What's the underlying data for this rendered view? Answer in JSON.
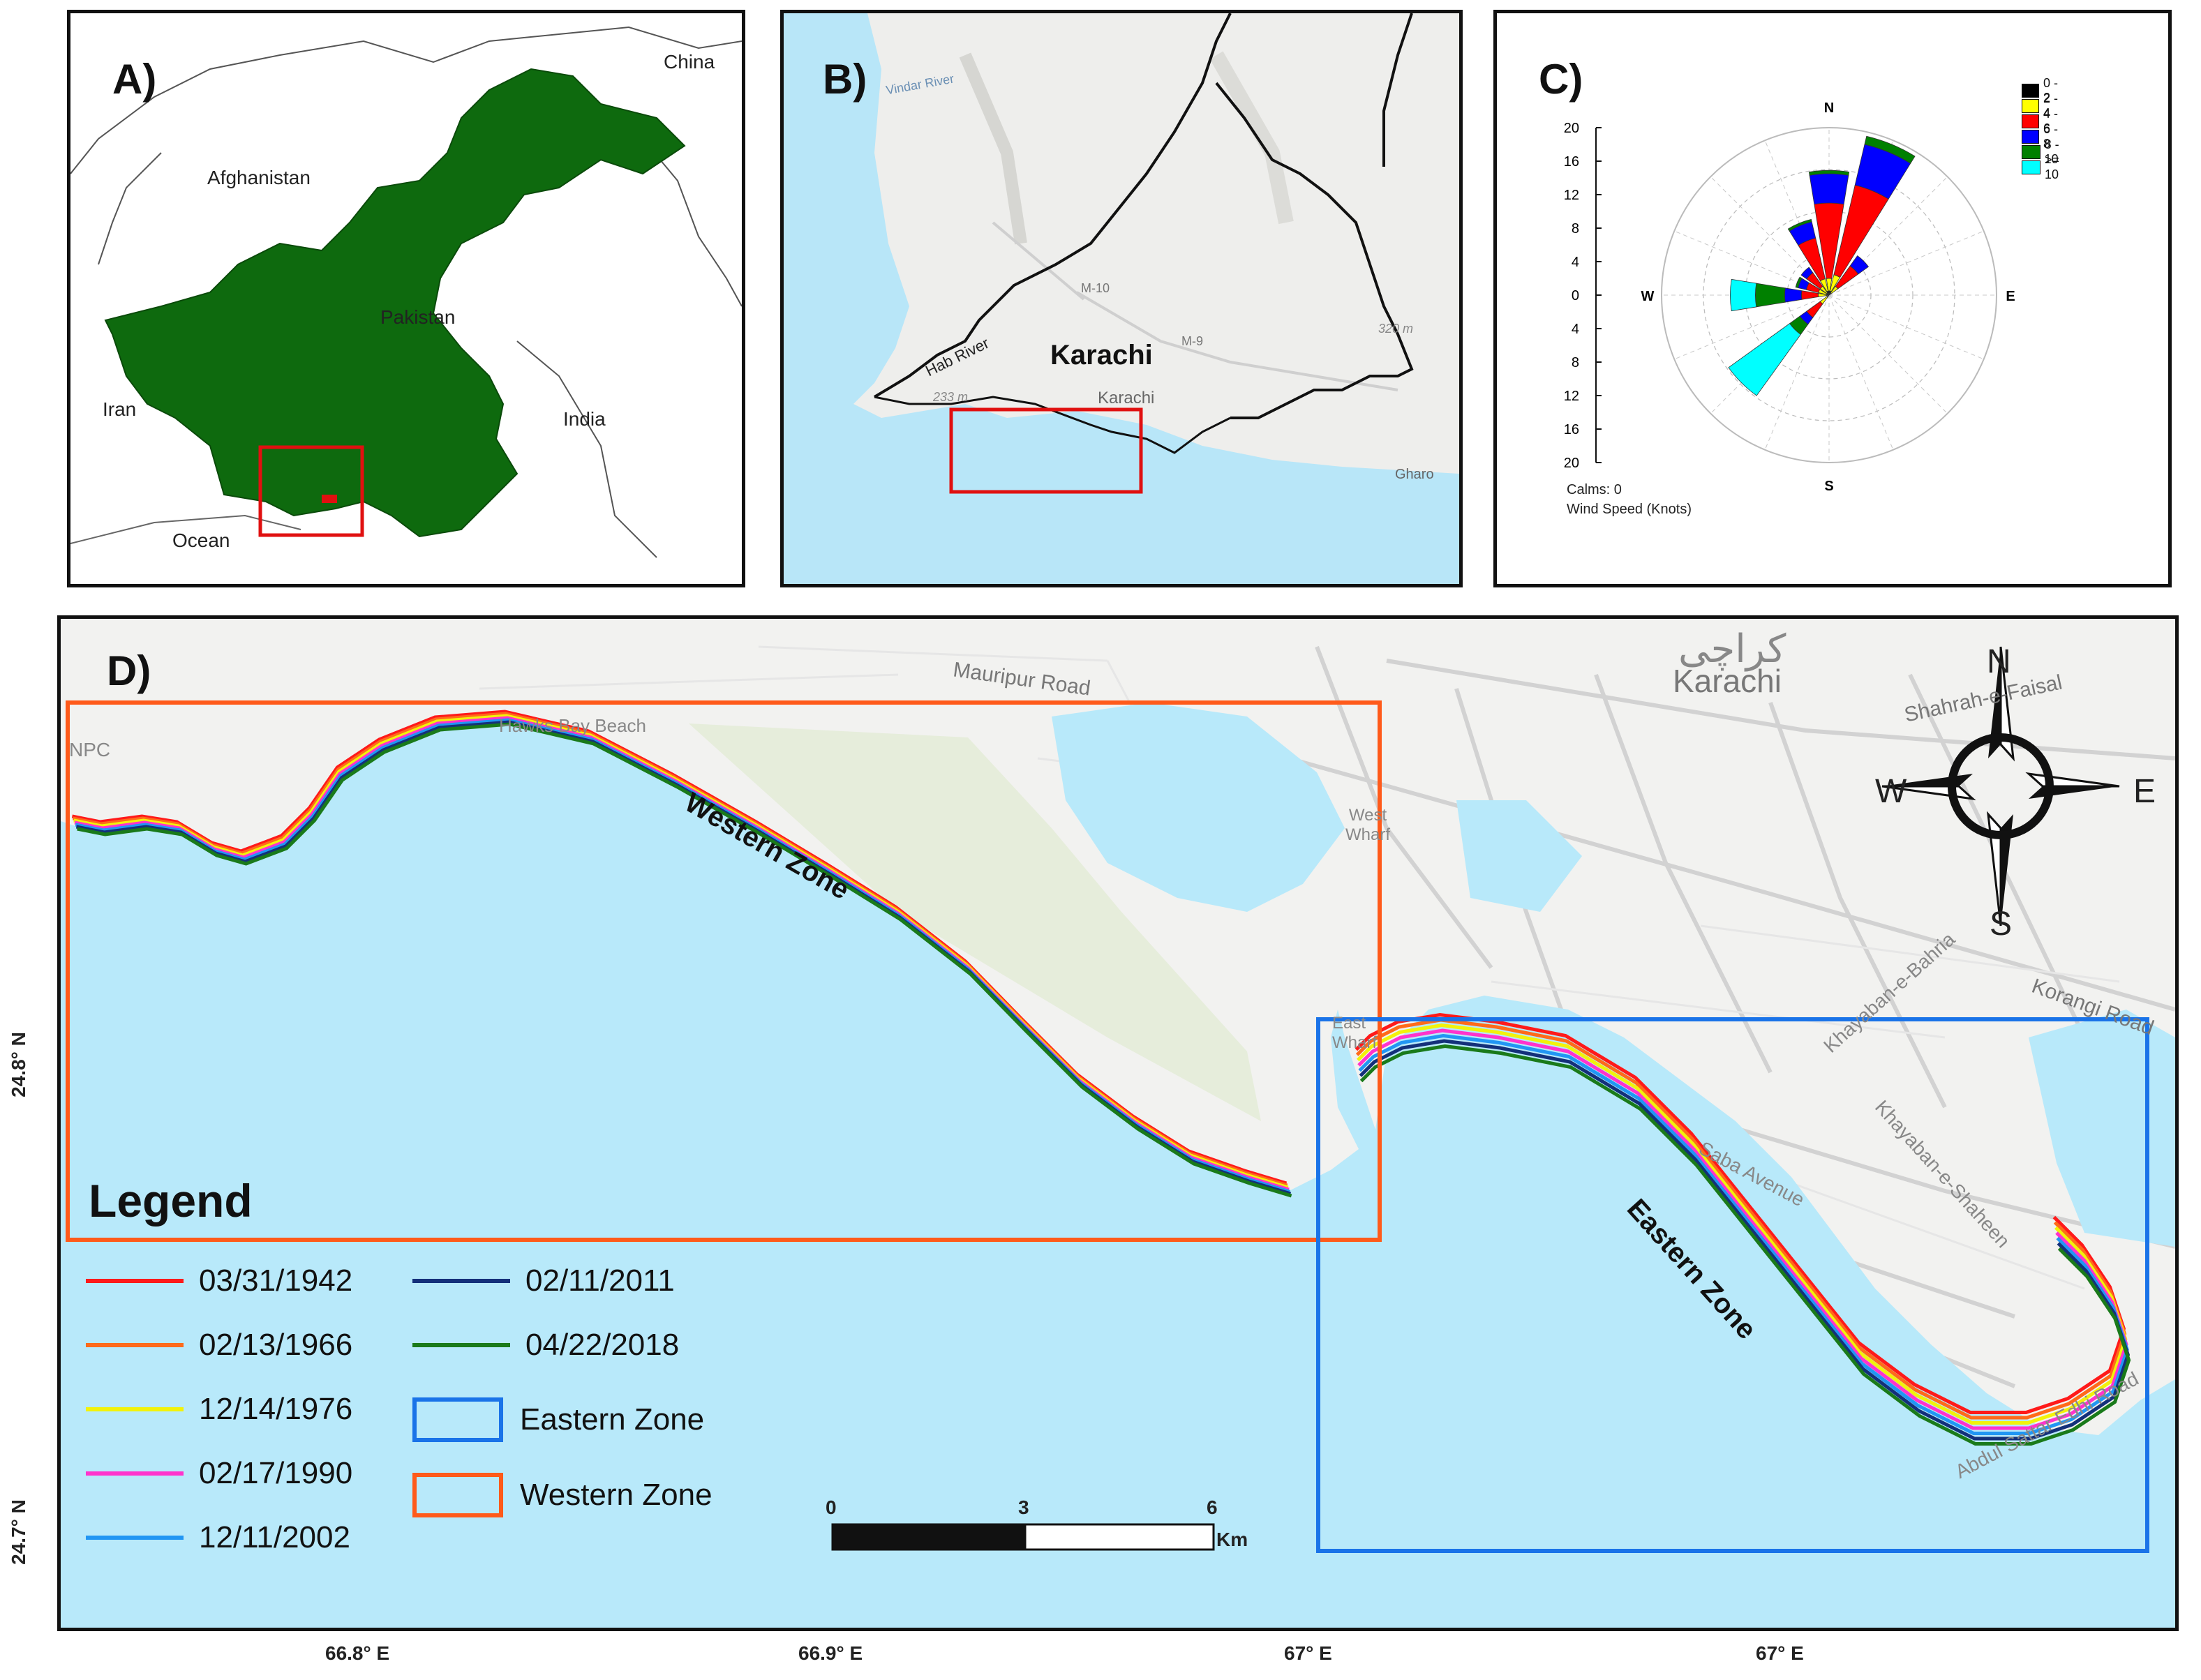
{
  "panels": {
    "a": {
      "label": "A)",
      "countries": {
        "china": "China",
        "afghanistan": "Afghanistan",
        "pakistan": "Pakistan",
        "iran": "Iran",
        "india": "India",
        "ocean": "Ocean"
      }
    },
    "b": {
      "label": "B)",
      "city": "Karachi",
      "city_small": "Karachi",
      "places": {
        "hab_river": "Hab River",
        "vindar_river": "Vindar River",
        "m10": "M-10",
        "m9": "M-9",
        "gharo": "Gharo",
        "elev1": "320 m",
        "elev2": "233 m"
      }
    },
    "c": {
      "label": "C)",
      "directions": {
        "n": "N",
        "s": "S",
        "e": "E",
        "w": "W"
      },
      "scale_ticks": [
        "20",
        "16",
        "12",
        "8",
        "4",
        "0",
        "4",
        "8",
        "12",
        "16",
        "20"
      ],
      "calms": "Calms: 0",
      "wind_speed_label": "Wind Speed (Knots)",
      "speed_bins": [
        {
          "label": "0 - 2",
          "color": "#000000"
        },
        {
          "label": "2 - 4",
          "color": "#ffff00"
        },
        {
          "label": "4 - 6",
          "color": "#ff0000"
        },
        {
          "label": "6 - 8",
          "color": "#0000ff"
        },
        {
          "label": "8 - 10",
          "color": "#008000"
        },
        {
          "label": ">= 10",
          "color": "#00ffff"
        }
      ]
    },
    "d": {
      "label": "D)",
      "map_labels": {
        "karachi_urdu": "کراچی",
        "karachi": "Karachi",
        "mauripur_road": "Mauripur Road",
        "hawks_bay_beach": "Hawks Bay Beach",
        "npc": "NPC",
        "west_wharf": "West Wharf",
        "east_wharf": "East Wharf",
        "shahrah_faisal": "Shahrah-e-Faisal",
        "korangi_road": "Korangi Road",
        "khayaban_bahria": "Khayaban-e-Bahria",
        "khayaban_shaheen": "Khayaban-e-Shaheen",
        "saba_avenue": "Saba Avenue",
        "abdul_sattar_edhi_road": "Abdul Sattar Edhi Road"
      },
      "zones": {
        "western": "Western Zone",
        "eastern": "Eastern Zone"
      },
      "compass": {
        "n": "N",
        "s": "S",
        "e": "E",
        "w": "W"
      },
      "scale_bar": {
        "ticks": [
          "0",
          "3",
          "6"
        ],
        "unit": "Km"
      },
      "lat_labels": [
        "24.8° N",
        "24.7° N"
      ],
      "lon_labels": [
        "66.8° E",
        "66.9° E",
        "67° E",
        "67° E"
      ],
      "legend": {
        "title": "Legend",
        "shorelines": [
          {
            "date": "03/31/1942",
            "color": "#ff1a1a"
          },
          {
            "date": " 02/13/1966",
            "color": "#ff6a1a"
          },
          {
            "date": "12/14/1976",
            "color": "#f2f20a"
          },
          {
            "date": "02/17/1990",
            "color": "#ff33cc"
          },
          {
            "date": "12/11/2002",
            "color": "#2196f3"
          },
          {
            "date": "02/11/2011",
            "color": "#14307a"
          },
          {
            "date": "04/22/2018",
            "color": "#1a7a1a"
          }
        ],
        "zones": [
          {
            "label": "Eastern Zone",
            "color": "#1a73e8"
          },
          {
            "label": "Western Zone",
            "color": "#ff5a1a"
          }
        ]
      }
    }
  },
  "chart_data": {
    "type": "wind-rose",
    "directions": [
      "N",
      "NNE",
      "NE",
      "ENE",
      "E",
      "ESE",
      "SE",
      "SSE",
      "S",
      "SSW",
      "SW",
      "WSW",
      "W",
      "WNW",
      "NW",
      "NNW"
    ],
    "speed_bins": [
      "0 - 2",
      "2 - 4",
      "4 - 6",
      "6 - 8",
      "8 - 10",
      ">= 10"
    ],
    "frequencies": {
      "N": [
        0.5,
        1.5,
        9,
        3.5,
        0.4,
        0
      ],
      "NNE": [
        0.5,
        2,
        11,
        5,
        1,
        0
      ],
      "NE": [
        0.3,
        1,
        3,
        1.5,
        0,
        0
      ],
      "SW": [
        0.3,
        1,
        2,
        1,
        1.5,
        9
      ],
      "W": [
        0.3,
        1,
        2,
        2,
        3.5,
        3
      ],
      "WNW": [
        0.3,
        1,
        1.5,
        1,
        0.3,
        0
      ],
      "NW": [
        0.3,
        1,
        2,
        0.8,
        0,
        0
      ],
      "NNW": [
        0.5,
        1.5,
        5,
        2,
        0.3,
        0
      ]
    },
    "rmax": 20,
    "calms": 0
  }
}
